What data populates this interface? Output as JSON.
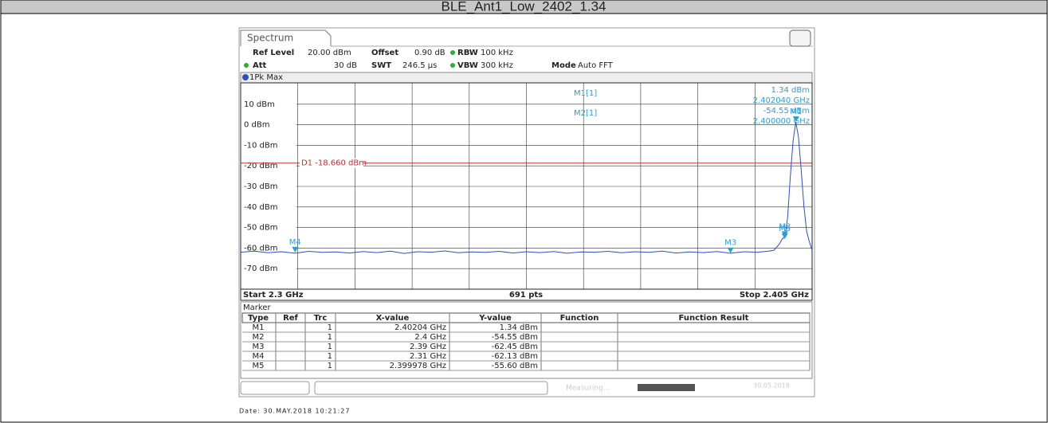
{
  "header": {
    "title": "BLE_Ant1_Low_2402_1.34"
  },
  "screen": {
    "tab": "Spectrum",
    "settings": {
      "ref_level_label": "Ref Level",
      "ref_level": "20.00 dBm",
      "offset_label": "Offset",
      "offset": "0.90 dB",
      "rbw_label": "RBW",
      "rbw": "100 kHz",
      "att_label": "Att",
      "att": "30 dB",
      "swt_label": "SWT",
      "swt": "246.5 µs",
      "vbw_label": "VBW",
      "vbw": "300 kHz",
      "mode_label": "Mode",
      "mode": "Auto FFT"
    },
    "trace_label": "1Pk Max",
    "marker_info": {
      "m1_label": "M1[1]",
      "m1_level": "1.34 dBm",
      "m1_freq": "2.402040 GHz",
      "m2_label": "M2[1]",
      "m2_level": "-54.55 dBm",
      "m2_freq": "2.400000 GHz"
    },
    "start": "Start 2.3 GHz",
    "points": "691 pts",
    "stop": "Stop 2.405 GHz",
    "marker_table": {
      "title": "Marker",
      "columns": [
        "Type",
        "Ref",
        "Trc",
        "X-value",
        "Y-value",
        "Function",
        "Function Result"
      ],
      "rows": [
        {
          "type": "M1",
          "trc": "1",
          "x_value": "2.40204 GHz",
          "y_value": "1.34 dBm"
        },
        {
          "type": "M2",
          "trc": "1",
          "x_value": "2.4 GHz",
          "y_value": "-54.55 dBm"
        },
        {
          "type": "M3",
          "trc": "1",
          "x_value": "2.39 GHz",
          "y_value": "-62.45 dBm"
        },
        {
          "type": "M4",
          "trc": "1",
          "x_value": "2.31 GHz",
          "y_value": "-62.13 dBm"
        },
        {
          "type": "M5",
          "trc": "1",
          "x_value": "2.399978 GHz",
          "y_value": "-55.60 dBm"
        }
      ]
    },
    "status": {
      "text": "Measuring...",
      "date": "30.05.2018"
    }
  },
  "chart_data": {
    "type": "line",
    "x": [
      2.3,
      2.3025,
      2.305,
      2.3075,
      2.31,
      2.3125,
      2.315,
      2.3175,
      2.32,
      2.3225,
      2.325,
      2.3275,
      2.33,
      2.3325,
      2.335,
      2.3375,
      2.34,
      2.3425,
      2.345,
      2.3475,
      2.35,
      2.3525,
      2.355,
      2.3575,
      2.36,
      2.3625,
      2.365,
      2.3675,
      2.37,
      2.3725,
      2.375,
      2.3775,
      2.38,
      2.3825,
      2.385,
      2.3875,
      2.39,
      2.3925,
      2.395,
      2.397,
      2.398,
      2.399,
      2.3995,
      2.4,
      2.4005,
      2.401,
      2.4015,
      2.402,
      2.4025,
      2.403,
      2.4035,
      2.404,
      2.4045,
      2.405
    ],
    "series": [
      {
        "name": "1Pk Max",
        "color": "#2f4fc4",
        "values": [
          -62,
          -61.5,
          -62.3,
          -61.8,
          -62.5,
          -61.6,
          -62.1,
          -61.9,
          -62.4,
          -61.7,
          -62.2,
          -61.5,
          -62.6,
          -61.8,
          -62,
          -61.4,
          -62.3,
          -61.9,
          -62.1,
          -61.6,
          -62.4,
          -61.8,
          -62.2,
          -61.7,
          -62.5,
          -61.9,
          -62,
          -61.6,
          -62.3,
          -61.8,
          -62.1,
          -61.5,
          -62.4,
          -61.9,
          -62.2,
          -61.7,
          -62.5,
          -61.8,
          -62,
          -61.5,
          -61,
          -58,
          -55.6,
          -54.5,
          -45,
          -25,
          -8,
          1.34,
          -6,
          -22,
          -40,
          -52,
          -57,
          -61
        ]
      }
    ],
    "xlim": [
      2.3,
      2.405
    ],
    "ylim": [
      -80,
      20
    ],
    "yticks": [
      {
        "value": 10,
        "label": "10 dBm"
      },
      {
        "value": 0,
        "label": "0 dBm"
      },
      {
        "value": -10,
        "label": "-10 dBm"
      },
      {
        "value": -20,
        "label": "-20 dBm"
      },
      {
        "value": -30,
        "label": "-30 dBm"
      },
      {
        "value": -40,
        "label": "-40 dBm"
      },
      {
        "value": -50,
        "label": "-50 dBm"
      },
      {
        "value": -60,
        "label": "-60 dBm"
      },
      {
        "value": -70,
        "label": "-70 dBm"
      }
    ],
    "threshold": {
      "label": "D1 -18.660 dBm",
      "value": -18.66,
      "color": "#c03030"
    },
    "markers": [
      {
        "name": "M1",
        "x": 2.40204,
        "y": 1.34
      },
      {
        "name": "M2",
        "x": 2.4,
        "y": -54.55
      },
      {
        "name": "M3",
        "x": 2.39,
        "y": -62.45
      },
      {
        "name": "M4",
        "x": 2.31,
        "y": -62.13
      },
      {
        "name": "M5",
        "x": 2.399978,
        "y": -55.6
      }
    ],
    "marker_color": "#2a9fd6"
  },
  "footer": {
    "date": "Date: 30.MAY.2018 10:21:27"
  }
}
